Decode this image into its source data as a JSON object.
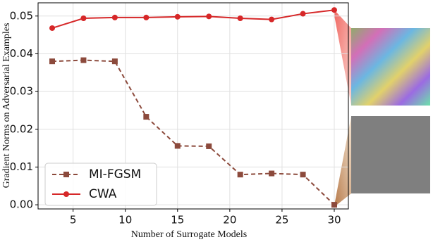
{
  "chart_data": {
    "type": "line",
    "xlabel": "Number of Surrogate Models",
    "ylabel": "Gradient Norms on Adversarial Examples",
    "x": [
      3,
      6,
      9,
      12,
      15,
      18,
      21,
      24,
      27,
      30
    ],
    "series": [
      {
        "name": "MI-FGSM",
        "color": "#8c4a3c",
        "dashed": true,
        "marker": "square",
        "values": [
          0.038,
          0.0383,
          0.038,
          0.0233,
          0.0156,
          0.0155,
          0.008,
          0.0083,
          0.008,
          0.0
        ]
      },
      {
        "name": "CWA",
        "color": "#d62728",
        "dashed": false,
        "marker": "circle",
        "values": [
          0.0468,
          0.0494,
          0.0496,
          0.0496,
          0.0498,
          0.0499,
          0.0494,
          0.0491,
          0.0506,
          0.0516
        ]
      }
    ],
    "xlim": [
      1.65,
      31.35
    ],
    "xticks": [
      5,
      10,
      15,
      20,
      25,
      30
    ],
    "ylim": [
      -0.0011,
      0.0535
    ],
    "yticks": [
      {
        "value": 0,
        "label": "0.00"
      },
      {
        "value": 0.01,
        "label": "0.01"
      },
      {
        "value": 0.02,
        "label": "0.02"
      },
      {
        "value": 0.03,
        "label": "0.03"
      },
      {
        "value": 0.04,
        "label": "0.04"
      },
      {
        "value": 0.05,
        "label": "0.05"
      }
    ],
    "grid": true,
    "legend": "lower left"
  }
}
